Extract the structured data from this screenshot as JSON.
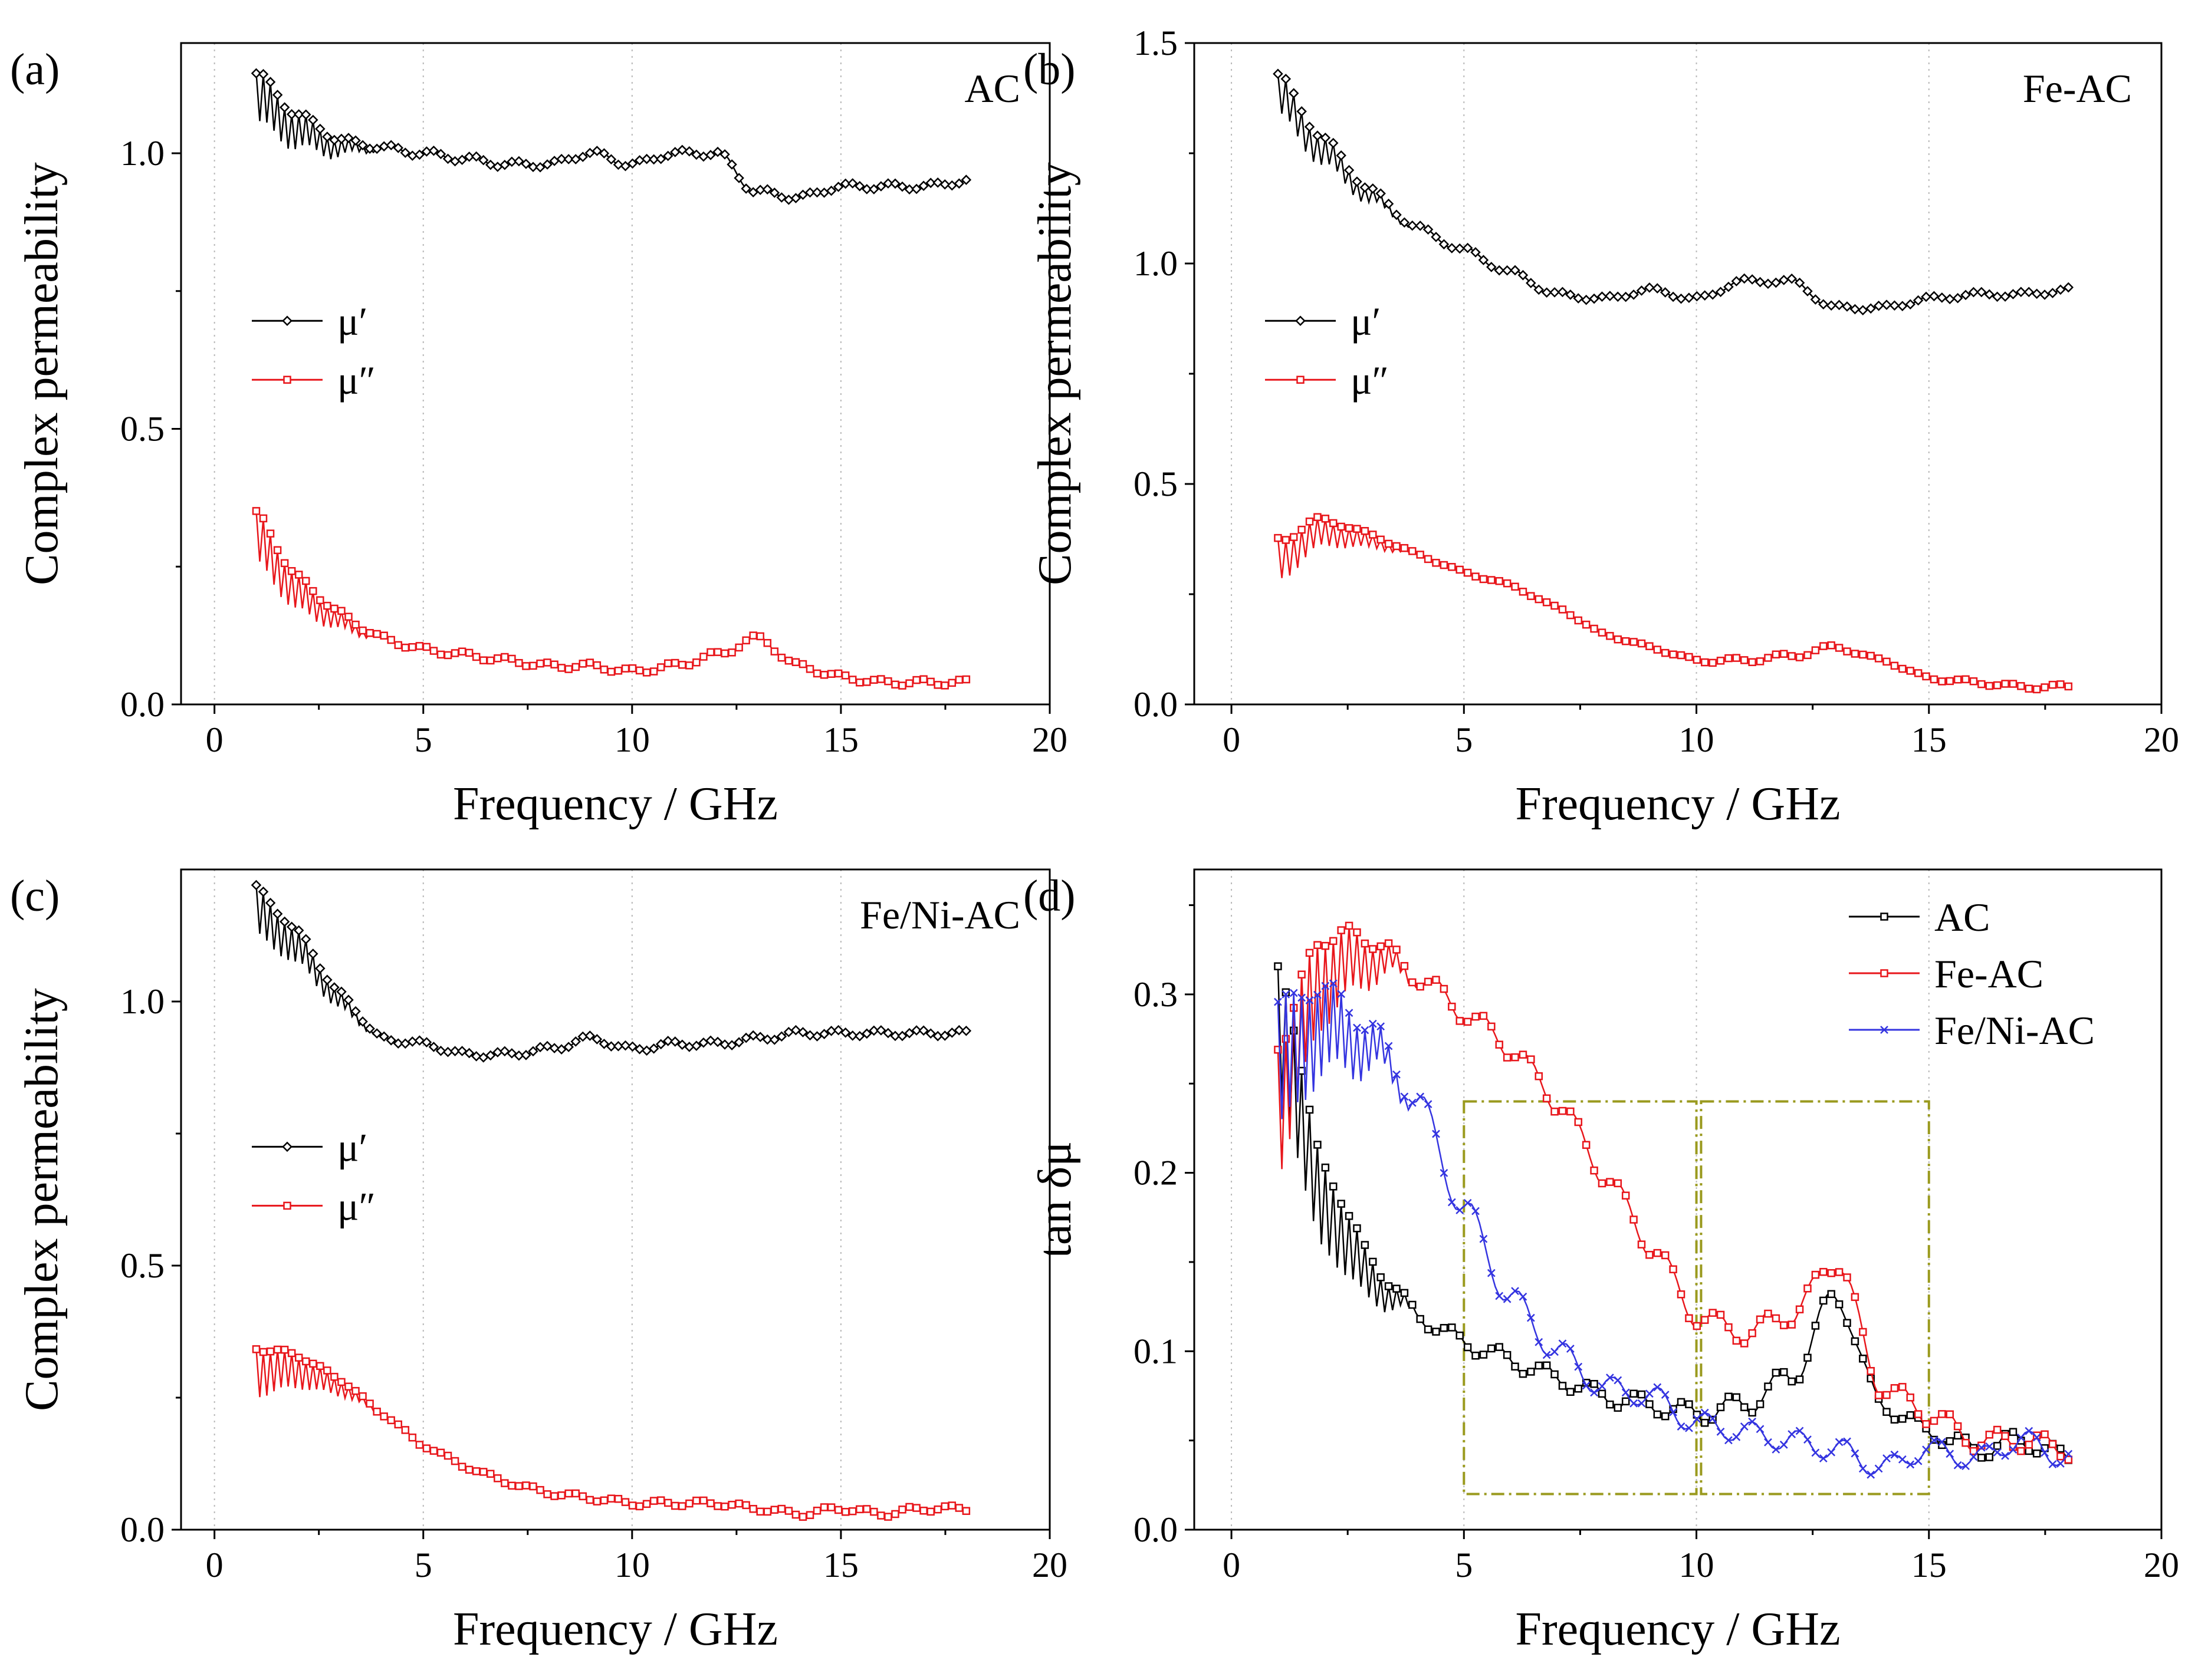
{
  "colors": {
    "mu_prime": "#000000",
    "mu_double_prime": "#e8161b",
    "AC": "#000000",
    "Fe-AC": "#e8161b",
    "Fe/Ni-AC": "#3434e0",
    "box": "#9a9a1e",
    "grid": "#b8b8b8"
  },
  "chart_data": [
    {
      "id": "a",
      "type": "line",
      "panel_label": "(a)",
      "sample_label": "AC",
      "xlabel": "Frequency / GHz",
      "ylabel": "Complex permeability",
      "xlim": [
        -0.8,
        20
      ],
      "ylim": [
        0,
        1.2
      ],
      "xticks": [
        0,
        5,
        10,
        15,
        20
      ],
      "xtick_labels": [
        "0",
        "5",
        "10",
        "15",
        "20"
      ],
      "yticks": [
        0,
        0.5,
        1.0
      ],
      "ytick_labels": [
        "0.0",
        "0.5",
        "1.0"
      ],
      "grid": "vertical dotted",
      "legend_position": "center-left",
      "x": [
        1,
        2,
        3,
        4,
        5,
        6,
        7,
        8,
        9,
        10,
        11,
        12,
        13,
        14,
        15,
        16,
        17,
        18
      ],
      "series": [
        {
          "name": "μ′",
          "color_key": "mu_prime",
          "values": [
            1.1,
            1.04,
            1.01,
            1.01,
            1.0,
            0.99,
            0.98,
            0.98,
            1.0,
            0.98,
            1.0,
            1.0,
            0.93,
            0.92,
            0.94,
            0.94,
            0.94,
            0.95
          ]
        },
        {
          "name": "μ″",
          "color_key": "mu_double_prime",
          "values": [
            0.3,
            0.2,
            0.15,
            0.12,
            0.1,
            0.09,
            0.08,
            0.07,
            0.07,
            0.06,
            0.07,
            0.09,
            0.12,
            0.07,
            0.05,
            0.04,
            0.04,
            0.04
          ]
        }
      ]
    },
    {
      "id": "b",
      "type": "line",
      "panel_label": "(b)",
      "sample_label": "Fe-AC",
      "xlabel": "Frequency / GHz",
      "ylabel": "Complex permeability",
      "xlim": [
        -0.8,
        20
      ],
      "ylim": [
        0,
        1.5
      ],
      "xticks": [
        0,
        5,
        10,
        15,
        20
      ],
      "xtick_labels": [
        "0",
        "5",
        "10",
        "15",
        "20"
      ],
      "yticks": [
        0,
        0.5,
        1.0,
        1.5
      ],
      "ytick_labels": [
        "0.0",
        "0.5",
        "1.0",
        "1.5"
      ],
      "grid": "vertical dotted",
      "legend_position": "center-left",
      "x": [
        1,
        2,
        3,
        4,
        5,
        6,
        7,
        8,
        9,
        10,
        11,
        12,
        13,
        14,
        15,
        16,
        17,
        18
      ],
      "series": [
        {
          "name": "μ′",
          "color_key": "mu_prime",
          "values": [
            1.38,
            1.25,
            1.15,
            1.08,
            1.03,
            0.98,
            0.93,
            0.92,
            0.94,
            0.92,
            0.96,
            0.96,
            0.9,
            0.9,
            0.92,
            0.93,
            0.93,
            0.94
          ]
        },
        {
          "name": "μ″",
          "color_key": "mu_double_prime",
          "values": [
            0.33,
            0.39,
            0.37,
            0.34,
            0.3,
            0.27,
            0.22,
            0.16,
            0.13,
            0.1,
            0.1,
            0.11,
            0.13,
            0.1,
            0.06,
            0.05,
            0.04,
            0.04
          ]
        }
      ]
    },
    {
      "id": "c",
      "type": "line",
      "panel_label": "(c)",
      "sample_label": "Fe/Ni-AC",
      "xlabel": "Frequency / GHz",
      "ylabel": "Complex permeability",
      "xlim": [
        -0.8,
        20
      ],
      "ylim": [
        0,
        1.25
      ],
      "xticks": [
        0,
        5,
        10,
        15,
        20
      ],
      "xtick_labels": [
        "0",
        "5",
        "10",
        "15",
        "20"
      ],
      "yticks": [
        0,
        0.5,
        1.0
      ],
      "ytick_labels": [
        "0.0",
        "0.5",
        "1.0"
      ],
      "grid": "vertical dotted",
      "legend_position": "center-left",
      "x": [
        1,
        2,
        3,
        4,
        5,
        6,
        7,
        8,
        9,
        10,
        11,
        12,
        13,
        14,
        15,
        16,
        17,
        18
      ],
      "series": [
        {
          "name": "μ′",
          "color_key": "mu_prime",
          "values": [
            1.17,
            1.1,
            1.0,
            0.93,
            0.92,
            0.9,
            0.9,
            0.91,
            0.93,
            0.91,
            0.92,
            0.92,
            0.93,
            0.94,
            0.94,
            0.94,
            0.94,
            0.94
          ]
        },
        {
          "name": "μ″",
          "color_key": "mu_double_prime",
          "values": [
            0.3,
            0.3,
            0.27,
            0.22,
            0.16,
            0.12,
            0.09,
            0.07,
            0.06,
            0.05,
            0.05,
            0.05,
            0.04,
            0.03,
            0.04,
            0.03,
            0.04,
            0.04
          ]
        }
      ]
    },
    {
      "id": "d",
      "type": "line",
      "panel_label": "(d)",
      "xlabel": "Frequency / GHz",
      "ylabel": "tan δμ",
      "xlim": [
        -0.8,
        20
      ],
      "ylim": [
        0,
        0.37
      ],
      "xticks": [
        0,
        5,
        10,
        15,
        20
      ],
      "xtick_labels": [
        "0",
        "5",
        "10",
        "15",
        "20"
      ],
      "yticks": [
        0,
        0.1,
        0.2,
        0.3
      ],
      "ytick_labels": [
        "0.0",
        "0.1",
        "0.2",
        "0.3"
      ],
      "grid": "vertical dotted",
      "legend_position": "top-right",
      "x": [
        1,
        2,
        3,
        4,
        5,
        6,
        7,
        8,
        9,
        10,
        11,
        12,
        13,
        14,
        15,
        16,
        17,
        18
      ],
      "series": [
        {
          "name": "AC",
          "color_key": "AC",
          "values": [
            0.28,
            0.18,
            0.14,
            0.12,
            0.105,
            0.095,
            0.085,
            0.075,
            0.07,
            0.065,
            0.07,
            0.085,
            0.13,
            0.07,
            0.055,
            0.045,
            0.05,
            0.04
          ]
        },
        {
          "name": "Fe-AC",
          "color_key": "Fe-AC",
          "values": [
            0.24,
            0.31,
            0.32,
            0.31,
            0.29,
            0.27,
            0.24,
            0.2,
            0.16,
            0.12,
            0.11,
            0.12,
            0.15,
            0.08,
            0.065,
            0.05,
            0.05,
            0.045
          ]
        },
        {
          "name": "Fe/Ni-AC",
          "color_key": "Fe/Ni-AC",
          "values": [
            0.26,
            0.28,
            0.27,
            0.24,
            0.18,
            0.13,
            0.1,
            0.08,
            0.075,
            0.06,
            0.055,
            0.05,
            0.045,
            0.035,
            0.045,
            0.04,
            0.05,
            0.04
          ]
        }
      ],
      "highlight_boxes": [
        {
          "x_range": [
            5,
            10
          ],
          "y_range": [
            0.02,
            0.24
          ]
        },
        {
          "x_range": [
            10.1,
            15
          ],
          "y_range": [
            0.02,
            0.24
          ]
        }
      ]
    }
  ]
}
